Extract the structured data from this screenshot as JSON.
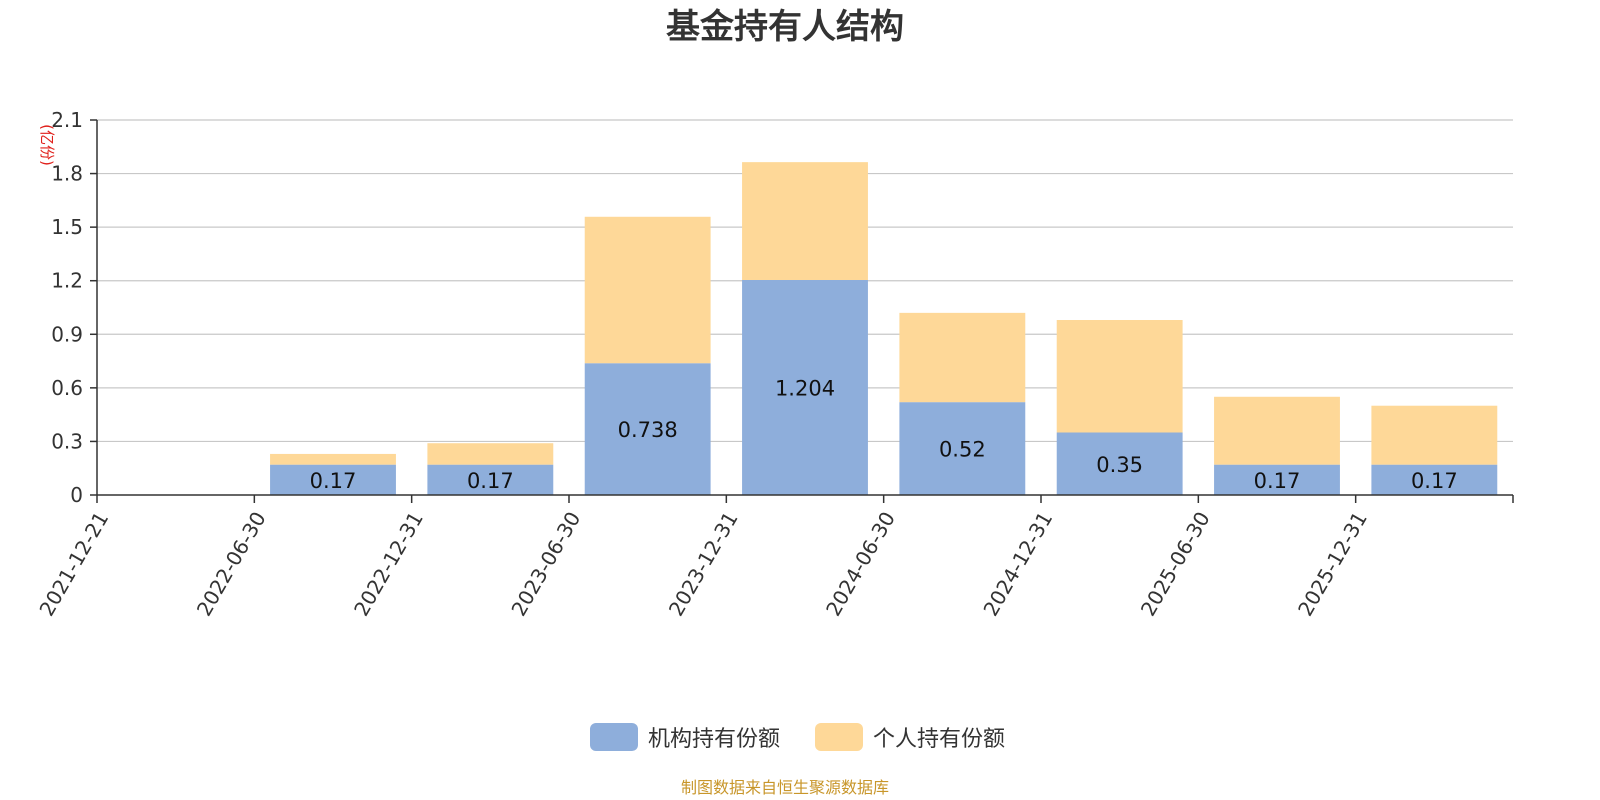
{
  "chart_data": {
    "type": "bar",
    "stacked": true,
    "title": "基金持有人结构",
    "ylabel": "(亿份)",
    "ylim": [
      0,
      2.1
    ],
    "yticks": [
      "0",
      "0.3",
      "0.6",
      "0.9",
      "1.2",
      "1.5",
      "1.8",
      "2.1"
    ],
    "grid": true,
    "legend_position": "bottom",
    "categories": [
      "2021-12-21",
      "2022-06-30",
      "2022-12-31",
      "2023-06-30",
      "2023-12-31",
      "2024-06-30",
      "2024-12-31",
      "2025-06-30",
      "2025-12-31"
    ],
    "series": [
      {
        "name": "机构持有份额",
        "color": "#8eaedb",
        "values": [
          0,
          0.17,
          0.17,
          0.738,
          1.204,
          0.52,
          0.35,
          0.17,
          0.17
        ],
        "labels": [
          "",
          "0.17",
          "0.17",
          "0.738",
          "1.204",
          "0.52",
          "0.35",
          "0.17",
          "0.17"
        ]
      },
      {
        "name": "个人持有份额",
        "color": "#fed898",
        "values": [
          0,
          0.06,
          0.12,
          0.82,
          0.66,
          0.5,
          0.63,
          0.38,
          0.33
        ]
      }
    ]
  },
  "source": "制图数据来自恒生聚源数据库"
}
